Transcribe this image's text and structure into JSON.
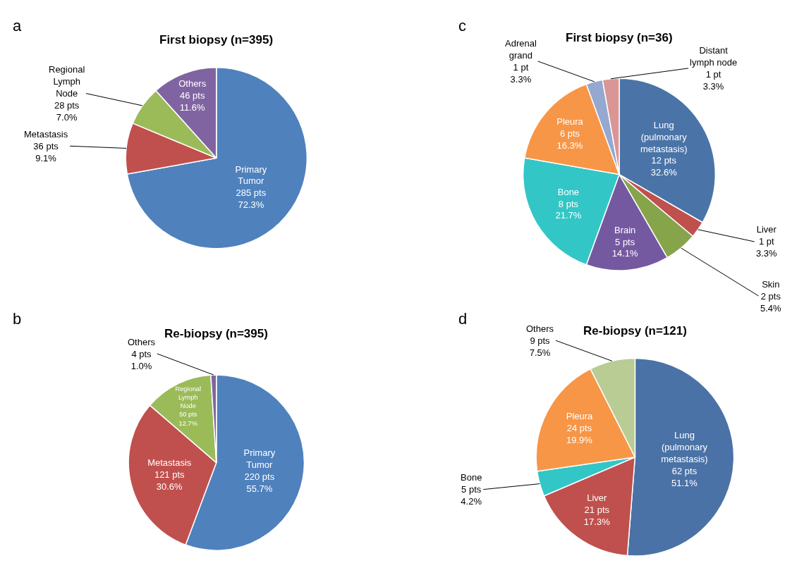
{
  "chart_data": [
    {
      "type": "pie",
      "title": "First biopsy (n=395)",
      "annotations": [
        "a"
      ],
      "categories": [
        "Primary\nTumor",
        "Metastasis",
        "Regional\nLymph\nNode",
        "Others"
      ],
      "values": [
        285,
        36,
        28,
        46
      ],
      "colors": [
        "#4f81bd",
        "#c0504d",
        "#9bbb59",
        "#8064a2"
      ],
      "value_labels": [
        "285 pts\n72.3%",
        "36 pts\n9.1%",
        "28 pts\n7.0%",
        "46 pts\n11.6%"
      ],
      "legend": false
    },
    {
      "type": "pie",
      "title": "First biopsy (n=36)",
      "annotations": [
        "c"
      ],
      "categories": [
        "Lung\n(pulmonary\nmetastasis)",
        "Liver",
        "Skin",
        "Brain",
        "Bone",
        "Pleura",
        "Adrenal\ngrand",
        "Distant\nlymph node"
      ],
      "values": [
        12,
        1,
        2,
        5,
        8,
        6,
        1,
        1
      ],
      "colors": [
        "#4a74a8",
        "#c0504d",
        "#86a44a",
        "#7559a0",
        "#33c6c6",
        "#f79646",
        "#94a8d0",
        "#d99694"
      ],
      "value_labels": [
        "12 pts\n32.6%",
        "1 pt\n3.3%",
        "2 pts\n5.4%",
        "5 pts\n14.1%",
        "8 pts\n21.7%",
        "6 pts\n16.3%",
        "1 pt\n3.3%",
        "1 pt\n3.3%"
      ],
      "legend": false
    },
    {
      "type": "pie",
      "title": "Re-biopsy (n=395)",
      "annotations": [
        "b"
      ],
      "categories": [
        "Primary\nTumor",
        "Metastasis",
        "Regional\nLymph\nNode",
        "Others"
      ],
      "values": [
        220,
        121,
        50,
        4
      ],
      "colors": [
        "#4f81bd",
        "#c0504d",
        "#9bbb59",
        "#8064a2"
      ],
      "value_labels": [
        "220 pts\n55.7%",
        "121 pts\n30.6%",
        "50 pts\n12.7%",
        "4 pts\n1.0%"
      ],
      "legend": false
    },
    {
      "type": "pie",
      "title": "Re-biopsy (n=121)",
      "annotations": [
        "d"
      ],
      "categories": [
        "Lung\n(pulmonary\nmetastasis)",
        "Liver",
        "Bone",
        "Pleura",
        "Others"
      ],
      "values": [
        62,
        21,
        5,
        24,
        9
      ],
      "colors": [
        "#4a72a6",
        "#c0504d",
        "#33c6c6",
        "#f79646",
        "#b8cc94"
      ],
      "value_labels": [
        "62 pts\n51.1%",
        "21 pts\n17.3%",
        "5 pts\n4.2%",
        "24 pts\n19.9%",
        "9 pts\n7.5%"
      ],
      "legend": false
    }
  ]
}
